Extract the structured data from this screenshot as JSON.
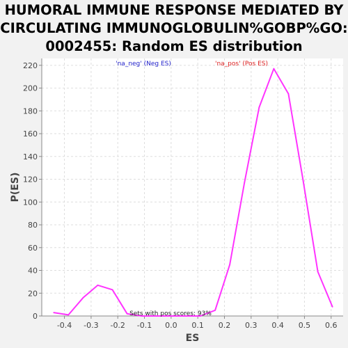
{
  "chart_data": {
    "type": "line",
    "title_lines": [
      "HUMORAL IMMUNE RESPONSE MEDIATED BY",
      "CIRCULATING IMMUNOGLOBULIN%GOBP%GO:",
      "0002455: Random ES distribution"
    ],
    "xlabel": "ES",
    "ylabel": "P(ES)",
    "xlim": [
      -0.485,
      0.645
    ],
    "ylim": [
      0,
      226
    ],
    "xticks": [
      "-0.4",
      "-0.3",
      "-0.2",
      "-0.1",
      "0.0",
      "0.1",
      "0.2",
      "0.3",
      "0.4",
      "0.5",
      "0.6"
    ],
    "yticks": [
      "0",
      "20",
      "40",
      "60",
      "80",
      "100",
      "120",
      "140",
      "160",
      "180",
      "200",
      "220"
    ],
    "grid": true,
    "series": [
      {
        "color": "#ff33ff",
        "x": [
          -0.44,
          -0.385,
          -0.33,
          -0.275,
          -0.22,
          -0.165,
          -0.11,
          -0.055,
          0.0,
          0.055,
          0.11,
          0.165,
          0.22,
          0.275,
          0.33,
          0.385,
          0.44,
          0.495,
          0.55,
          0.605
        ],
        "y": [
          3,
          1,
          16,
          27,
          23,
          2,
          0,
          0,
          0,
          0,
          0,
          5,
          45,
          117,
          183,
          217,
          195,
          119,
          39,
          8
        ]
      }
    ],
    "annotations": {
      "neg": {
        "text": "'na_neg' (Neg ES)",
        "color": "#2222cc"
      },
      "pos": {
        "text": "'na_pos' (Pos ES)",
        "color": "#dd2222"
      },
      "footer": {
        "text": "Sets with pos scores: 93%",
        "color": "#222222"
      }
    }
  }
}
